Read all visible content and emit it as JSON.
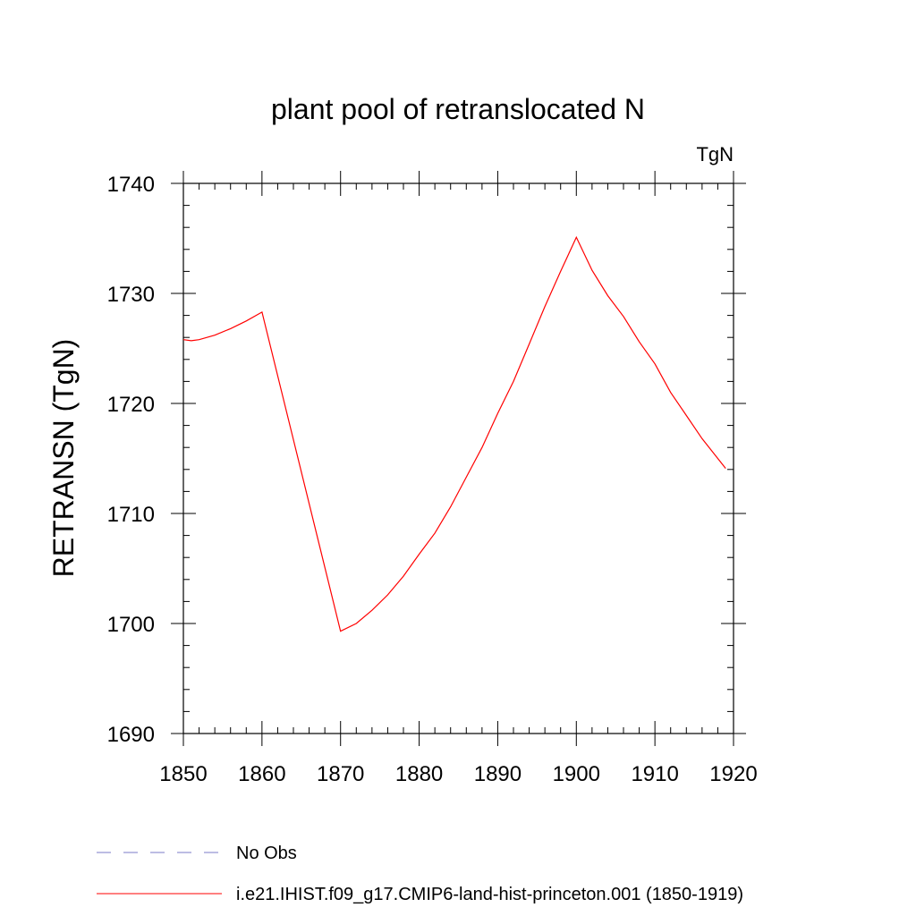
{
  "chart_data": {
    "type": "line",
    "title": "plant pool of retranslocated N",
    "units": "TgN",
    "ylabel": "RETRANSN  (TgN)",
    "xlabel": "",
    "xlim": [
      1850,
      1920
    ],
    "ylim": [
      1690,
      1740
    ],
    "xticks": [
      1850,
      1860,
      1870,
      1880,
      1890,
      1900,
      1910,
      1920
    ],
    "yticks": [
      1690,
      1700,
      1710,
      1720,
      1730,
      1740
    ],
    "grid": false,
    "legend_position": "bottom",
    "series": [
      {
        "name": "No Obs",
        "color": "#7b7bc8",
        "dash": "dashed",
        "x": [],
        "y": []
      },
      {
        "name": "i.e21.IHIST.f09_g17.CMIP6-land-hist-princeton.001 (1850-1919)",
        "color": "#ff0000",
        "dash": "solid",
        "x": [
          1850,
          1851,
          1852,
          1854,
          1856,
          1858,
          1860,
          1870,
          1872,
          1874,
          1876,
          1878,
          1880,
          1882,
          1884,
          1886,
          1888,
          1890,
          1892,
          1894,
          1896,
          1898,
          1900,
          1902,
          1904,
          1906,
          1908,
          1910,
          1912,
          1914,
          1916,
          1918,
          1919
        ],
        "y": [
          1725.8,
          1725.7,
          1725.8,
          1726.2,
          1726.8,
          1727.5,
          1728.3,
          1699.3,
          1700.0,
          1701.2,
          1702.6,
          1704.3,
          1706.3,
          1708.2,
          1710.6,
          1713.3,
          1716.0,
          1719.1,
          1722.0,
          1725.4,
          1728.8,
          1732.0,
          1735.1,
          1732.1,
          1729.8,
          1727.9,
          1725.6,
          1723.6,
          1721.0,
          1718.9,
          1716.8,
          1715.0,
          1714.1
        ]
      }
    ]
  }
}
